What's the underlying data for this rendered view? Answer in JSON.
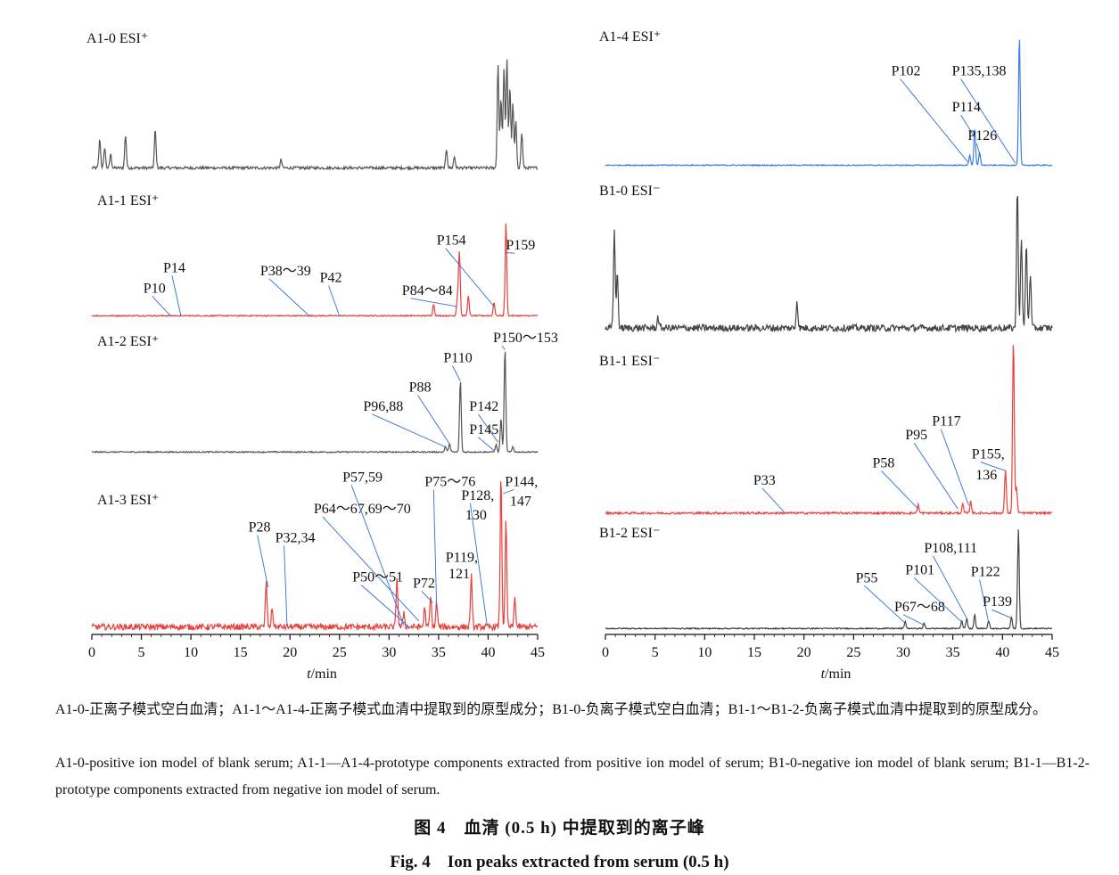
{
  "chart_data": [
    {
      "type": "line",
      "panel": "left",
      "xlabel": "t/min",
      "xlim": [
        0,
        45
      ],
      "xticks": [
        0,
        5,
        10,
        15,
        20,
        25,
        30,
        35,
        40,
        45
      ],
      "traces": [
        {
          "name": "A1-0 ESI⁺",
          "color": "#555555",
          "noise": 0.012,
          "peaks": [
            [
              0.8,
              0.25
            ],
            [
              1.3,
              0.18
            ],
            [
              1.9,
              0.12
            ],
            [
              3.4,
              0.28
            ],
            [
              6.4,
              0.33
            ],
            [
              19.1,
              0.07
            ],
            [
              35.8,
              0.16
            ],
            [
              36.6,
              0.1
            ],
            [
              41.0,
              0.9
            ],
            [
              41.3,
              0.6
            ],
            [
              41.6,
              0.85
            ],
            [
              41.9,
              0.95
            ],
            [
              42.2,
              0.7
            ],
            [
              42.5,
              0.55
            ],
            [
              42.8,
              0.4
            ],
            [
              43.4,
              0.3
            ]
          ],
          "labels": []
        },
        {
          "name": "A1-1 ESI⁺",
          "color": "#e8403d",
          "noise": 0.006,
          "peaks": [
            [
              34.5,
              0.12
            ],
            [
              37.1,
              0.65
            ],
            [
              36.9,
              0.18
            ],
            [
              38.0,
              0.2
            ],
            [
              40.6,
              0.14
            ],
            [
              41.8,
              0.95
            ]
          ],
          "labels": [
            {
              "text": "P10",
              "tx": 5.2,
              "ty": 0.24,
              "px": 8.0,
              "py": 0.0
            },
            {
              "text": "P14",
              "tx": 7.2,
              "ty": 0.45,
              "px": 9.0,
              "py": 0.0
            },
            {
              "text": "P38～39",
              "tx": 17.0,
              "ty": 0.42,
              "px": 22.0,
              "py": 0.0
            },
            {
              "text": "P42",
              "tx": 23.0,
              "ty": 0.35,
              "px": 25.0,
              "py": 0.0
            },
            {
              "text": "P84～84",
              "tx": 31.3,
              "ty": 0.22,
              "px": 36.8,
              "py": 0.1
            },
            {
              "text": "P154",
              "tx": 34.8,
              "ty": 0.73,
              "px": 40.6,
              "py": 0.1
            },
            {
              "text": "P159",
              "tx": 41.8,
              "ty": 0.68,
              "px": 41.8,
              "py": 0.65
            }
          ]
        },
        {
          "name": "A1-2 ESI⁺",
          "color": "#555555",
          "noise": 0.006,
          "peaks": [
            [
              35.7,
              0.05
            ],
            [
              36.1,
              0.08
            ],
            [
              37.2,
              0.68
            ],
            [
              40.8,
              0.07
            ],
            [
              41.3,
              0.32
            ],
            [
              41.7,
              0.98
            ],
            [
              42.5,
              0.05
            ]
          ],
          "labels": [
            {
              "text": "P96,88",
              "tx": 27.4,
              "ty": 0.4,
              "px": 35.8,
              "py": 0.05
            },
            {
              "text": "P88",
              "tx": 32.0,
              "ty": 0.58,
              "px": 36.2,
              "py": 0.07
            },
            {
              "text": "P110",
              "tx": 35.5,
              "ty": 0.86,
              "px": 37.2,
              "py": 0.68
            },
            {
              "text": "P142",
              "tx": 38.1,
              "ty": 0.4,
              "px": 41.0,
              "py": 0.1
            },
            {
              "text": "P145",
              "tx": 38.1,
              "ty": 0.18,
              "px": 40.6,
              "py": 0.02
            },
            {
              "text": "P150～153",
              "tx": 40.5,
              "ty": 1.05,
              "px": 41.7,
              "py": 0.98
            }
          ]
        },
        {
          "name": "A1-3 ESI⁺",
          "color": "#e8403d",
          "noise": 0.02,
          "peaks": [
            [
              17.6,
              0.3
            ],
            [
              18.2,
              0.12
            ],
            [
              30.8,
              0.32
            ],
            [
              31.5,
              0.1
            ],
            [
              33.6,
              0.13
            ],
            [
              34.2,
              0.2
            ],
            [
              34.8,
              0.16
            ],
            [
              38.3,
              0.34
            ],
            [
              41.3,
              1.0
            ],
            [
              41.8,
              0.7
            ],
            [
              42.7,
              0.2
            ]
          ],
          "labels": [
            {
              "text": "P28",
              "tx": 15.8,
              "ty": 0.65,
              "px": 17.8,
              "py": 0.28
            },
            {
              "text": "P32,34",
              "tx": 18.5,
              "ty": 0.58,
              "px": 19.7,
              "py": 0.03
            },
            {
              "text": "P64～67,69～70",
              "tx": 22.4,
              "ty": 0.77,
              "px": 33.0,
              "py": 0.06
            },
            {
              "text": "P57,59",
              "tx": 25.3,
              "ty": 0.98,
              "px": 31.5,
              "py": 0.03
            },
            {
              "text": "P50～51",
              "tx": 26.3,
              "ty": 0.32,
              "px": 32.0,
              "py": 0.02
            },
            {
              "text": "P72",
              "tx": 32.4,
              "ty": 0.28,
              "px": 34.4,
              "py": 0.18
            },
            {
              "text": "P75～76",
              "tx": 33.6,
              "ty": 0.95,
              "px": 34.8,
              "py": 0.15
            },
            {
              "text": "P119,",
              "tx": 35.7,
              "ty": 0.45,
              "px": null,
              "py": null
            },
            {
              "text": "121",
              "tx": 36.0,
              "ty": 0.34,
              "px": null,
              "py": null
            },
            {
              "text": "P128,",
              "tx": 37.3,
              "ty": 0.86,
              "px": 39.9,
              "py": 0.03
            },
            {
              "text": "130",
              "tx": 37.7,
              "ty": 0.73,
              "px": null,
              "py": null
            },
            {
              "text": "P144,",
              "tx": 41.7,
              "ty": 0.95,
              "px": 41.5,
              "py": 0.9
            },
            {
              "text": "147",
              "tx": 42.2,
              "ty": 0.82,
              "px": null,
              "py": null
            }
          ]
        }
      ]
    },
    {
      "type": "line",
      "panel": "right",
      "xlabel": "t/min",
      "xlim": [
        0,
        45
      ],
      "xticks": [
        0,
        5,
        10,
        15,
        20,
        25,
        30,
        35,
        40,
        45
      ],
      "traces": [
        {
          "name": "A1-4 ESI⁺",
          "color": "#3d7fe0",
          "noise": 0.004,
          "peaks": [
            [
              36.7,
              0.08
            ],
            [
              37.2,
              0.28
            ],
            [
              37.7,
              0.1
            ],
            [
              41.7,
              1.0
            ]
          ],
          "labels": [
            {
              "text": "P102",
              "tx": 28.8,
              "ty": 0.7,
              "px": 36.5,
              "py": 0.03
            },
            {
              "text": "P135,138",
              "tx": 34.9,
              "ty": 0.7,
              "px": 41.3,
              "py": 0.02
            },
            {
              "text": "P114",
              "tx": 34.9,
              "ty": 0.42,
              "px": 37.2,
              "py": 0.22
            },
            {
              "text": "P126",
              "tx": 36.5,
              "ty": 0.2,
              "px": 37.8,
              "py": 0.06
            }
          ]
        },
        {
          "name": "B1-0 ESI⁻",
          "color": "#444444",
          "noise": 0.025,
          "peaks": [
            [
              0.9,
              0.7
            ],
            [
              1.2,
              0.4
            ],
            [
              5.3,
              0.08
            ],
            [
              19.3,
              0.2
            ],
            [
              41.5,
              1.0
            ],
            [
              41.9,
              0.65
            ],
            [
              42.4,
              0.6
            ],
            [
              42.8,
              0.4
            ]
          ],
          "labels": []
        },
        {
          "name": "B1-1 ESI⁻",
          "color": "#e8403d",
          "noise": 0.006,
          "peaks": [
            [
              31.5,
              0.05
            ],
            [
              36.0,
              0.05
            ],
            [
              36.8,
              0.07
            ],
            [
              40.3,
              0.25
            ],
            [
              41.1,
              1.0
            ],
            [
              41.4,
              0.15
            ]
          ],
          "labels": [
            {
              "text": "P33",
              "tx": 14.9,
              "ty": 0.17,
              "px": 18.2,
              "py": 0.0
            },
            {
              "text": "P58",
              "tx": 26.9,
              "ty": 0.27,
              "px": 31.5,
              "py": 0.03
            },
            {
              "text": "P95",
              "tx": 30.2,
              "ty": 0.43,
              "px": 35.5,
              "py": 0.03
            },
            {
              "text": "P117",
              "tx": 32.9,
              "ty": 0.51,
              "px": 36.6,
              "py": 0.05
            },
            {
              "text": "P155,",
              "tx": 36.9,
              "ty": 0.32,
              "px": 40.3,
              "py": 0.25
            },
            {
              "text": "136",
              "tx": 37.3,
              "ty": 0.2,
              "px": null,
              "py": null
            }
          ]
        },
        {
          "name": "B1-2 ESI⁻",
          "color": "#444444",
          "noise": 0.006,
          "peaks": [
            [
              30.2,
              0.07
            ],
            [
              32.1,
              0.05
            ],
            [
              35.9,
              0.08
            ],
            [
              36.4,
              0.1
            ],
            [
              37.2,
              0.14
            ],
            [
              38.6,
              0.08
            ],
            [
              40.9,
              0.12
            ],
            [
              41.6,
              1.0
            ]
          ],
          "labels": [
            {
              "text": "P55",
              "tx": 25.2,
              "ty": 0.47,
              "px": 30.2,
              "py": 0.06
            },
            {
              "text": "P67～68",
              "tx": 29.1,
              "ty": 0.18,
              "px": 32.1,
              "py": 0.04
            },
            {
              "text": "P101",
              "tx": 30.2,
              "ty": 0.55,
              "px": 35.9,
              "py": 0.07
            },
            {
              "text": "P108,111",
              "tx": 32.1,
              "ty": 0.77,
              "px": 36.5,
              "py": 0.09
            },
            {
              "text": "P122",
              "tx": 36.8,
              "ty": 0.53,
              "px": 38.6,
              "py": 0.07
            },
            {
              "text": "P139",
              "tx": 38.0,
              "ty": 0.23,
              "px": 40.9,
              "py": 0.11
            }
          ]
        }
      ]
    }
  ],
  "caption": {
    "note_cn": "A1-0-正离子模式空白血清；A1-1～A1-4-正离子模式血清中提取到的原型成分；B1-0-负离子模式空白血清；B1-1～B1-2-负离子模式血清中提取到的原型成分。",
    "note_en": "A1-0-positive ion model of blank serum; A1-1—A1-4-prototype components extracted from positive ion model of serum; B1-0-negative ion model of blank serum; B1-1—B1-2-prototype components extracted from negative ion model of serum.",
    "title_cn": "图 4　血清 (0.5 h) 中提取到的离子峰",
    "title_en": "Fig. 4　Ion peaks extracted from serum (0.5 h)"
  }
}
